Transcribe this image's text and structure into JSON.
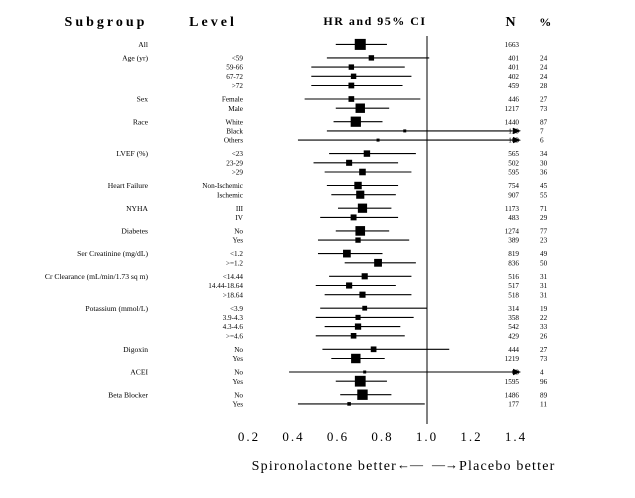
{
  "header": {
    "subgroup": "Subgroup",
    "level": "Level",
    "hr_ci": "HR and 95% CI",
    "n": "N",
    "pct": "%"
  },
  "footer": {
    "left_text": "Spironolactone better",
    "left_arrow": "←—",
    "right_arrow": "—→",
    "right_text": "Placebo better"
  },
  "colors": {
    "ink": "#000000",
    "background": "#ffffff"
  },
  "chart_data": {
    "type": "forest",
    "title": "HR and 95% CI",
    "x_axis": {
      "ticks": [
        0.2,
        0.4,
        0.6,
        0.8,
        1.0,
        1.2,
        1.4
      ],
      "min": 0.2,
      "max": 1.4,
      "ref_line": 1.0
    },
    "total_n": 1663,
    "groups": [
      {
        "subgroup": "All",
        "levels": [
          {
            "label": "",
            "n": 1663,
            "pct": null,
            "hr": 0.7,
            "lo": 0.59,
            "hi": 0.82,
            "arrow": false
          }
        ]
      },
      {
        "subgroup": "Age (yr)",
        "levels": [
          {
            "label": "<59",
            "n": 401,
            "pct": 24,
            "hr": 0.75,
            "lo": 0.55,
            "hi": 1.01,
            "arrow": false
          },
          {
            "label": "59-66",
            "n": 401,
            "pct": 24,
            "hr": 0.66,
            "lo": 0.48,
            "hi": 0.9,
            "arrow": false
          },
          {
            "label": "67-72",
            "n": 402,
            "pct": 24,
            "hr": 0.67,
            "lo": 0.48,
            "hi": 0.93,
            "arrow": false
          },
          {
            "label": ">72",
            "n": 459,
            "pct": 28,
            "hr": 0.66,
            "lo": 0.48,
            "hi": 0.89,
            "arrow": false
          }
        ]
      },
      {
        "subgroup": "Sex",
        "levels": [
          {
            "label": "Female",
            "n": 446,
            "pct": 27,
            "hr": 0.66,
            "lo": 0.45,
            "hi": 0.97,
            "arrow": false
          },
          {
            "label": "Male",
            "n": 1217,
            "pct": 73,
            "hr": 0.7,
            "lo": 0.59,
            "hi": 0.83,
            "arrow": false
          }
        ]
      },
      {
        "subgroup": "Race",
        "levels": [
          {
            "label": "White",
            "n": 1440,
            "pct": 87,
            "hr": 0.68,
            "lo": 0.58,
            "hi": 0.8,
            "arrow": false
          },
          {
            "label": "Black",
            "n": 120,
            "pct": 7,
            "hr": 0.9,
            "lo": 0.55,
            "hi": null,
            "arrow": true
          },
          {
            "label": "Others",
            "n": 103,
            "pct": 6,
            "hr": 0.78,
            "lo": 0.42,
            "hi": null,
            "arrow": true
          }
        ]
      },
      {
        "subgroup": "LVEF (%)",
        "levels": [
          {
            "label": "<23",
            "n": 565,
            "pct": 34,
            "hr": 0.73,
            "lo": 0.56,
            "hi": 0.95,
            "arrow": false
          },
          {
            "label": "23-29",
            "n": 502,
            "pct": 30,
            "hr": 0.65,
            "lo": 0.49,
            "hi": 0.87,
            "arrow": false
          },
          {
            "label": ">29",
            "n": 595,
            "pct": 36,
            "hr": 0.71,
            "lo": 0.54,
            "hi": 0.93,
            "arrow": false
          }
        ]
      },
      {
        "subgroup": "Heart Failure",
        "levels": [
          {
            "label": "Non-Ischemic",
            "n": 754,
            "pct": 45,
            "hr": 0.69,
            "lo": 0.55,
            "hi": 0.87,
            "arrow": false
          },
          {
            "label": "Ischemic",
            "n": 907,
            "pct": 55,
            "hr": 0.7,
            "lo": 0.57,
            "hi": 0.86,
            "arrow": false
          }
        ]
      },
      {
        "subgroup": "NYHA",
        "levels": [
          {
            "label": "III",
            "n": 1173,
            "pct": 71,
            "hr": 0.71,
            "lo": 0.6,
            "hi": 0.84,
            "arrow": false
          },
          {
            "label": "IV",
            "n": 483,
            "pct": 29,
            "hr": 0.67,
            "lo": 0.52,
            "hi": 0.87,
            "arrow": false
          }
        ]
      },
      {
        "subgroup": "Diabetes",
        "levels": [
          {
            "label": "No",
            "n": 1274,
            "pct": 77,
            "hr": 0.7,
            "lo": 0.59,
            "hi": 0.83,
            "arrow": false
          },
          {
            "label": "Yes",
            "n": 389,
            "pct": 23,
            "hr": 0.69,
            "lo": 0.51,
            "hi": 0.92,
            "arrow": false
          }
        ]
      },
      {
        "subgroup": "Ser Creatinine (mg/dL)",
        "levels": [
          {
            "label": "<1.2",
            "n": 819,
            "pct": 49,
            "hr": 0.64,
            "lo": 0.51,
            "hi": 0.8,
            "arrow": false
          },
          {
            "label": ">=1.2",
            "n": 836,
            "pct": 50,
            "hr": 0.78,
            "lo": 0.63,
            "hi": 0.95,
            "arrow": false
          }
        ]
      },
      {
        "subgroup": "Cr Clearance (mL/min/1.73 sq m)",
        "levels": [
          {
            "label": "<14.44",
            "n": 516,
            "pct": 31,
            "hr": 0.72,
            "lo": 0.56,
            "hi": 0.93,
            "arrow": false
          },
          {
            "label": "14.44-18.64",
            "n": 517,
            "pct": 31,
            "hr": 0.65,
            "lo": 0.5,
            "hi": 0.86,
            "arrow": false
          },
          {
            "label": ">18.64",
            "n": 518,
            "pct": 31,
            "hr": 0.71,
            "lo": 0.54,
            "hi": 0.93,
            "arrow": false
          }
        ]
      },
      {
        "subgroup": "Potassium (mmol/L)",
        "levels": [
          {
            "label": "<3.9",
            "n": 314,
            "pct": 19,
            "hr": 0.72,
            "lo": 0.52,
            "hi": 1.0,
            "arrow": false
          },
          {
            "label": "3.9-4.3",
            "n": 358,
            "pct": 22,
            "hr": 0.69,
            "lo": 0.5,
            "hi": 0.94,
            "arrow": false
          },
          {
            "label": "4.3-4.6",
            "n": 542,
            "pct": 33,
            "hr": 0.69,
            "lo": 0.54,
            "hi": 0.88,
            "arrow": false
          },
          {
            "label": ">=4.6",
            "n": 429,
            "pct": 26,
            "hr": 0.67,
            "lo": 0.5,
            "hi": 0.9,
            "arrow": false
          }
        ]
      },
      {
        "subgroup": "Digoxin",
        "levels": [
          {
            "label": "No",
            "n": 444,
            "pct": 27,
            "hr": 0.76,
            "lo": 0.53,
            "hi": 1.1,
            "arrow": false
          },
          {
            "label": "Yes",
            "n": 1219,
            "pct": 73,
            "hr": 0.68,
            "lo": 0.57,
            "hi": 0.81,
            "arrow": false
          }
        ]
      },
      {
        "subgroup": "ACEI",
        "levels": [
          {
            "label": "No",
            "n": 68,
            "pct": 4,
            "hr": 0.72,
            "lo": 0.38,
            "hi": null,
            "arrow": true
          },
          {
            "label": "Yes",
            "n": 1595,
            "pct": 96,
            "hr": 0.7,
            "lo": 0.59,
            "hi": 0.82,
            "arrow": false
          }
        ]
      },
      {
        "subgroup": "Beta Blocker",
        "levels": [
          {
            "label": "No",
            "n": 1486,
            "pct": 89,
            "hr": 0.71,
            "lo": 0.61,
            "hi": 0.84,
            "arrow": false
          },
          {
            "label": "Yes",
            "n": 177,
            "pct": 11,
            "hr": 0.65,
            "lo": 0.42,
            "hi": 0.99,
            "arrow": false
          }
        ]
      }
    ]
  }
}
